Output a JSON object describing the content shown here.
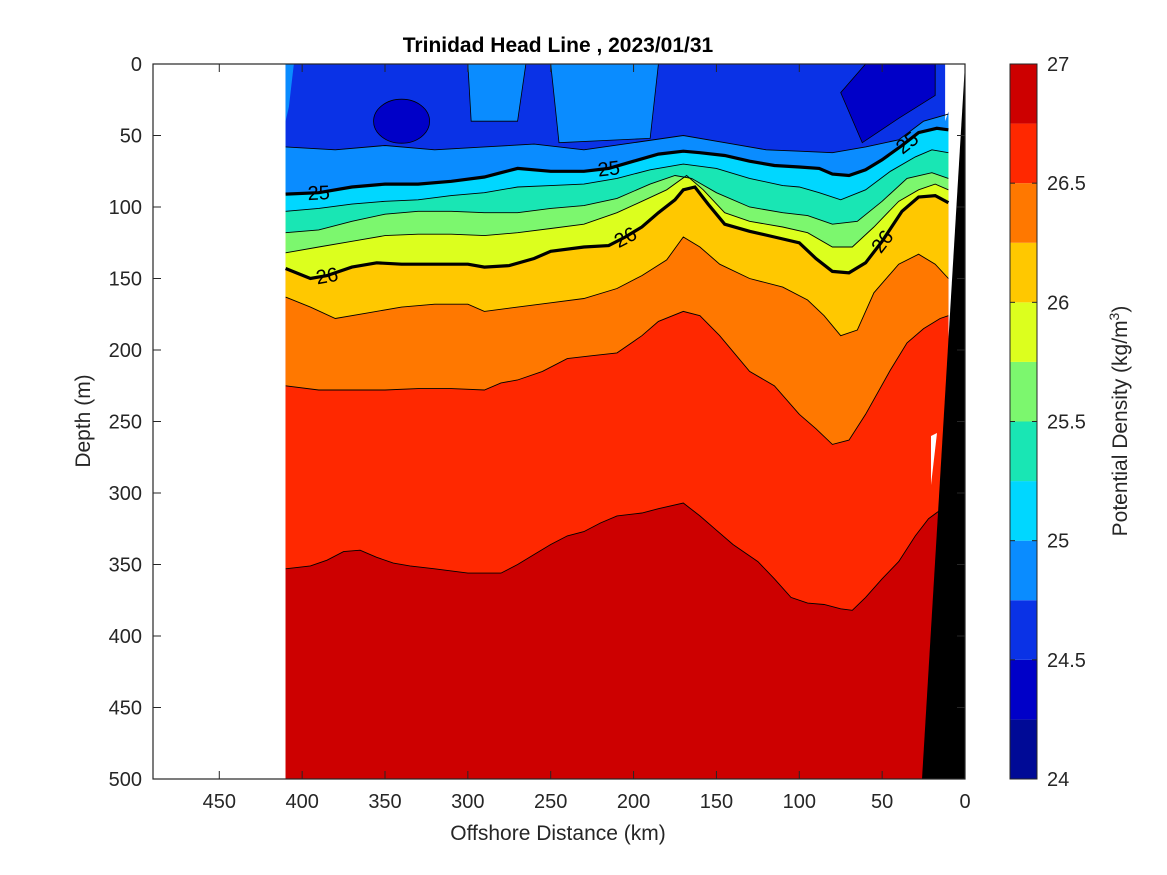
{
  "chart_data": {
    "type": "contour",
    "title": "Trinidad Head Line , 2023/01/31",
    "xlabel": "Offshore Distance (km)",
    "ylabel": "Depth (m)",
    "xlim": [
      490,
      0
    ],
    "ylim": [
      0,
      500
    ],
    "x_reversed": true,
    "y_reversed": true,
    "xticks": [
      "450",
      "400",
      "350",
      "300",
      "250",
      "200",
      "150",
      "100",
      "50",
      "0"
    ],
    "yticks": [
      "0",
      "50",
      "100",
      "150",
      "200",
      "250",
      "300",
      "350",
      "400",
      "450",
      "500"
    ],
    "colorbar": {
      "label": "Potential Density (kg/m",
      "label_sup": "3",
      "label_close": ")",
      "range": [
        24,
        27
      ],
      "ticks": [
        "24",
        "24.5",
        "25",
        "25.5",
        "26",
        "26.5",
        "27"
      ],
      "levels": [
        24,
        24.25,
        24.5,
        24.75,
        25,
        25.25,
        25.5,
        25.75,
        26,
        26.25,
        26.5,
        26.75,
        27
      ],
      "colors": [
        "#000a96",
        "#0000c8",
        "#0a32e6",
        "#0a8cff",
        "#00d7ff",
        "#19e6b4",
        "#7cf76e",
        "#dcff1e",
        "#ffc800",
        "#ff7800",
        "#ff2800",
        "#cd0000"
      ]
    },
    "data_extent_km": [
      410,
      10
    ],
    "contour_lines": [
      {
        "level": 25.0,
        "bold": true,
        "label": "25",
        "points": [
          [
            410,
            91
          ],
          [
            390,
            90
          ],
          [
            370,
            86
          ],
          [
            350,
            84
          ],
          [
            330,
            84
          ],
          [
            310,
            82
          ],
          [
            290,
            79
          ],
          [
            280,
            76
          ],
          [
            270,
            73
          ],
          [
            250,
            75
          ],
          [
            230,
            75
          ],
          [
            215,
            73
          ],
          [
            200,
            68
          ],
          [
            185,
            63
          ],
          [
            170,
            61
          ],
          [
            160,
            62
          ],
          [
            145,
            64
          ],
          [
            130,
            68
          ],
          [
            115,
            71
          ],
          [
            100,
            72
          ],
          [
            88,
            73
          ],
          [
            80,
            77
          ],
          [
            70,
            78
          ],
          [
            60,
            74
          ],
          [
            50,
            67
          ],
          [
            38,
            57
          ],
          [
            28,
            48
          ],
          [
            17,
            45
          ],
          [
            10,
            46
          ]
        ]
      },
      {
        "level": 26.0,
        "bold": true,
        "label": "26",
        "points": [
          [
            410,
            143
          ],
          [
            395,
            150
          ],
          [
            385,
            148
          ],
          [
            370,
            142
          ],
          [
            355,
            139
          ],
          [
            340,
            140
          ],
          [
            320,
            140
          ],
          [
            300,
            140
          ],
          [
            290,
            142
          ],
          [
            275,
            141
          ],
          [
            260,
            136
          ],
          [
            250,
            131
          ],
          [
            230,
            128
          ],
          [
            215,
            127
          ],
          [
            205,
            121
          ],
          [
            195,
            114
          ],
          [
            185,
            104
          ],
          [
            175,
            95
          ],
          [
            170,
            88
          ],
          [
            163,
            86
          ],
          [
            155,
            98
          ],
          [
            145,
            112
          ],
          [
            130,
            117
          ],
          [
            115,
            121
          ],
          [
            100,
            125
          ],
          [
            90,
            136
          ],
          [
            80,
            145
          ],
          [
            70,
            146
          ],
          [
            60,
            139
          ],
          [
            50,
            124
          ],
          [
            38,
            103
          ],
          [
            28,
            93
          ],
          [
            18,
            92
          ],
          [
            10,
            97
          ]
        ]
      }
    ],
    "approx_profile": {
      "distance_km": [
        410,
        300,
        200,
        170,
        120,
        80,
        40,
        10
      ],
      "isopycnal_depth_m": {
        "24.75": [
          60,
          58,
          55,
          50,
          60,
          62,
          55,
          40
        ],
        "25.0": [
          91,
          82,
          68,
          61,
          71,
          77,
          57,
          46
        ],
        "26.0": [
          143,
          140,
          121,
          88,
          121,
          146,
          103,
          97
        ],
        "26.25": [
          163,
          176,
          160,
          125,
          165,
          190,
          140,
          110
        ],
        "26.5": [
          225,
          228,
          195,
          165,
          235,
          265,
          210,
          150
        ],
        "26.75": [
          353,
          355,
          316,
          308,
          350,
          382,
          330,
          260
        ]
      }
    },
    "bottom_topography": "black seafloor wedge near 0-25 km offshore"
  }
}
